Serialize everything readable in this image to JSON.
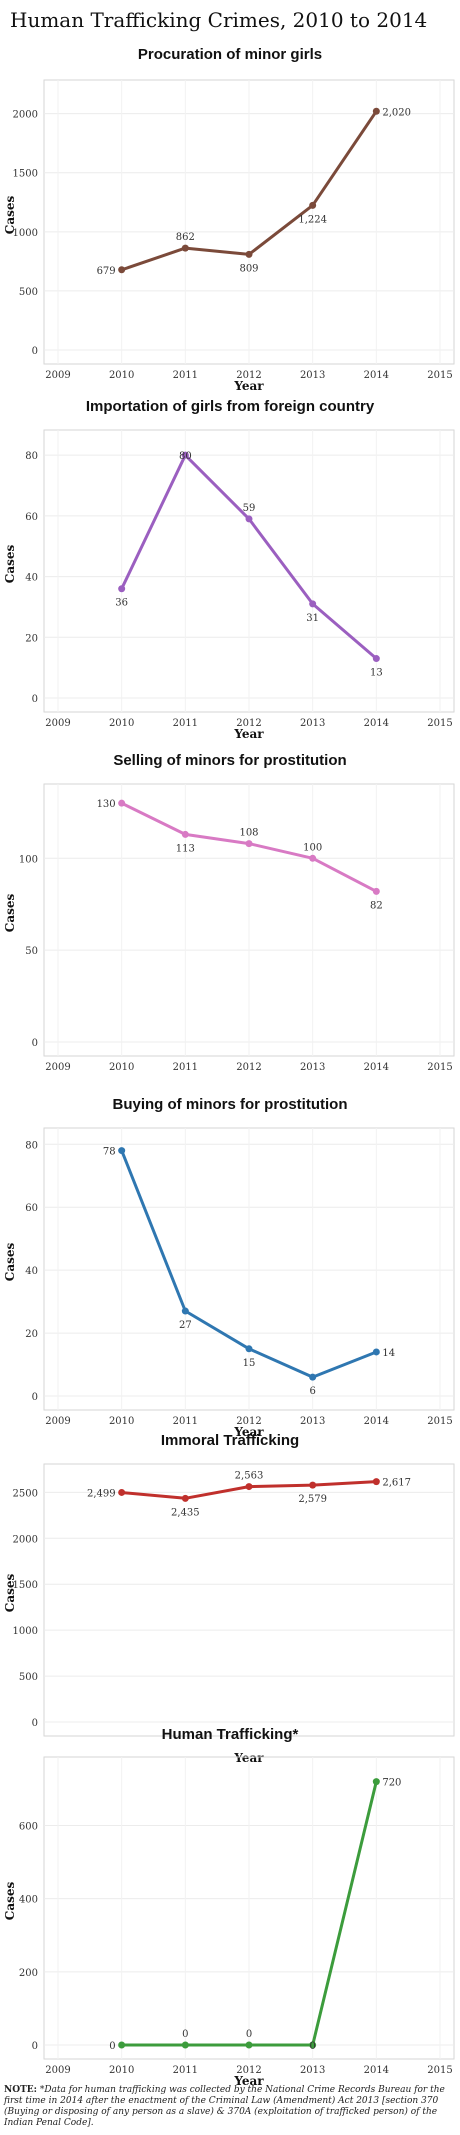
{
  "page_title": "Human Trafficking Crimes, 2010 to 2014",
  "note": {
    "label": "NOTE:",
    "text": "*Data for human trafficking was collected by the National Crime Records Bureau for the first time in 2014 after the enactment of the Criminal Law (Amendment) Act 2013 [section 370 (Buying or disposing of any person as a slave) & 370A (exploitation of trafficked person) of the Indian Penal Code]."
  },
  "chart_data": [
    {
      "type": "line",
      "title": "Procuration of minor girls",
      "xlabel": "Year",
      "ylabel": "Cases",
      "x_ticks": [
        "2009",
        "2010",
        "2011",
        "2012",
        "2013",
        "2014",
        "2015"
      ],
      "xlim": [
        2009,
        2015
      ],
      "y_ticks": [
        "0",
        "500",
        "1000",
        "1500",
        "2000"
      ],
      "y_tick_values": [
        0,
        500,
        1000,
        1500,
        2000
      ],
      "ylim": [
        0,
        2200
      ],
      "grid": true,
      "color": "#7b4a3a",
      "x": [
        2010,
        2011,
        2012,
        2013,
        2014
      ],
      "values": [
        679,
        862,
        809,
        1224,
        2020
      ],
      "labels": [
        "679",
        "862",
        "809",
        "1,224",
        "2,020"
      ],
      "label_pos": [
        "left",
        "above",
        "below",
        "below",
        "right"
      ]
    },
    {
      "type": "line",
      "title": "Importation of girls from foreign country",
      "xlabel": "Year",
      "ylabel": "Cases",
      "x_ticks": [
        "2009",
        "2010",
        "2011",
        "2012",
        "2013",
        "2014",
        "2015"
      ],
      "xlim": [
        2009,
        2015
      ],
      "y_ticks": [
        "0",
        "20",
        "40",
        "60",
        "80"
      ],
      "y_tick_values": [
        0,
        20,
        40,
        60,
        80
      ],
      "ylim": [
        0,
        85
      ],
      "grid": true,
      "color": "#9b5fc0",
      "x": [
        2010,
        2011,
        2012,
        2013,
        2014
      ],
      "values": [
        36,
        80,
        59,
        31,
        13
      ],
      "labels": [
        "36",
        "80",
        "59",
        "31",
        "13"
      ],
      "label_pos": [
        "below",
        "center",
        "above",
        "below",
        "below"
      ]
    },
    {
      "type": "line",
      "title": "Selling of minors for prostitution",
      "xlabel": "",
      "ylabel": "Cases",
      "x_ticks": [
        "2009",
        "2010",
        "2011",
        "2012",
        "2013",
        "2014",
        "2015"
      ],
      "xlim": [
        2009,
        2015
      ],
      "y_ticks": [
        "0",
        "50",
        "100"
      ],
      "y_tick_values": [
        0,
        50,
        100
      ],
      "ylim": [
        0,
        135
      ],
      "grid": true,
      "color": "#d87ac4",
      "x": [
        2010,
        2011,
        2012,
        2013,
        2014
      ],
      "values": [
        130,
        113,
        108,
        100,
        82
      ],
      "labels": [
        "130",
        "113",
        "108",
        "100",
        "82"
      ],
      "label_pos": [
        "left",
        "below",
        "above",
        "above",
        "below"
      ]
    },
    {
      "type": "line",
      "title": "Buying of minors for prostitution",
      "xlabel": "Year",
      "ylabel": "Cases",
      "x_ticks": [
        "2009",
        "2010",
        "2011",
        "2012",
        "2013",
        "2014",
        "2015"
      ],
      "xlim": [
        2009,
        2015
      ],
      "y_ticks": [
        "0",
        "20",
        "40",
        "60",
        "80"
      ],
      "y_tick_values": [
        0,
        20,
        40,
        60,
        80
      ],
      "ylim": [
        0,
        82
      ],
      "grid": true,
      "color": "#2f77b1",
      "x": [
        2010,
        2011,
        2012,
        2013,
        2014
      ],
      "values": [
        78,
        27,
        15,
        6,
        14
      ],
      "labels": [
        "78",
        "27",
        "15",
        "6",
        "14"
      ],
      "label_pos": [
        "left",
        "below",
        "below",
        "below",
        "right"
      ]
    },
    {
      "type": "line",
      "title": "Immoral Trafficking",
      "xlabel": "Year",
      "ylabel": "Cases",
      "x_ticks": [],
      "xlim": [
        2009,
        2015
      ],
      "y_ticks": [
        "0",
        "500",
        "1000",
        "1500",
        "2000",
        "2500"
      ],
      "y_tick_values": [
        0,
        500,
        1000,
        1500,
        2000,
        2500
      ],
      "ylim": [
        0,
        2700
      ],
      "grid": true,
      "color": "#c0302c",
      "x": [
        2010,
        2011,
        2012,
        2013,
        2014
      ],
      "values": [
        2499,
        2435,
        2563,
        2579,
        2617
      ],
      "labels": [
        "2,499",
        "2,435",
        "2,563",
        "2,579",
        "2,617"
      ],
      "label_pos": [
        "left",
        "below",
        "above",
        "below",
        "right"
      ]
    },
    {
      "type": "line",
      "title": "Human Trafficking*",
      "xlabel": "Year",
      "ylabel": "Cases",
      "x_ticks": [
        "2009",
        "2010",
        "2011",
        "2012",
        "2013",
        "2014",
        "2015"
      ],
      "xlim": [
        2009,
        2015
      ],
      "y_ticks": [
        "0",
        "200",
        "400",
        "600"
      ],
      "y_tick_values": [
        0,
        200,
        400,
        600
      ],
      "ylim": [
        0,
        760
      ],
      "grid": true,
      "color": "#3c9c3c",
      "x": [
        2010,
        2011,
        2012,
        2013,
        2014
      ],
      "values": [
        0,
        0,
        0,
        0,
        720
      ],
      "labels": [
        "0",
        "0",
        "0",
        "0",
        "720"
      ],
      "label_pos": [
        "left",
        "above",
        "above",
        "center",
        "right"
      ]
    }
  ]
}
